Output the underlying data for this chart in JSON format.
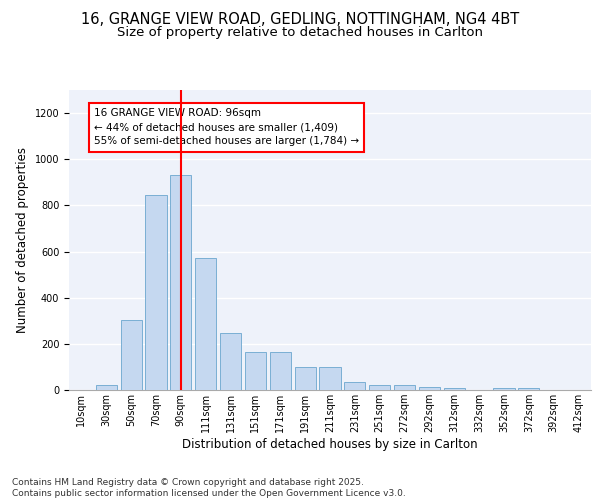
{
  "title_line1": "16, GRANGE VIEW ROAD, GEDLING, NOTTINGHAM, NG4 4BT",
  "title_line2": "Size of property relative to detached houses in Carlton",
  "xlabel": "Distribution of detached houses by size in Carlton",
  "ylabel": "Number of detached properties",
  "categories": [
    "10sqm",
    "30sqm",
    "50sqm",
    "70sqm",
    "90sqm",
    "111sqm",
    "131sqm",
    "151sqm",
    "171sqm",
    "191sqm",
    "211sqm",
    "231sqm",
    "251sqm",
    "272sqm",
    "292sqm",
    "312sqm",
    "332sqm",
    "352sqm",
    "372sqm",
    "392sqm",
    "412sqm"
  ],
  "values": [
    0,
    20,
    305,
    845,
    930,
    570,
    245,
    163,
    163,
    100,
    100,
    35,
    20,
    20,
    15,
    10,
    0,
    10,
    10,
    0,
    0
  ],
  "bar_color": "#c5d8f0",
  "bar_edge_color": "#7aafd4",
  "vline_color": "red",
  "vline_pos": 4.5,
  "annotation_text": "16 GRANGE VIEW ROAD: 96sqm\n← 44% of detached houses are smaller (1,409)\n55% of semi-detached houses are larger (1,784) →",
  "annotation_box_color": "white",
  "annotation_box_edgecolor": "red",
  "ylim": [
    0,
    1300
  ],
  "yticks": [
    0,
    200,
    400,
    600,
    800,
    1000,
    1200
  ],
  "background_color": "#eef2fa",
  "grid_color": "white",
  "title_fontsize": 10.5,
  "subtitle_fontsize": 9.5,
  "label_fontsize": 8.5,
  "tick_fontsize": 7,
  "annotation_fontsize": 7.5,
  "footer_fontsize": 6.5,
  "footer_text": "Contains HM Land Registry data © Crown copyright and database right 2025.\nContains public sector information licensed under the Open Government Licence v3.0."
}
